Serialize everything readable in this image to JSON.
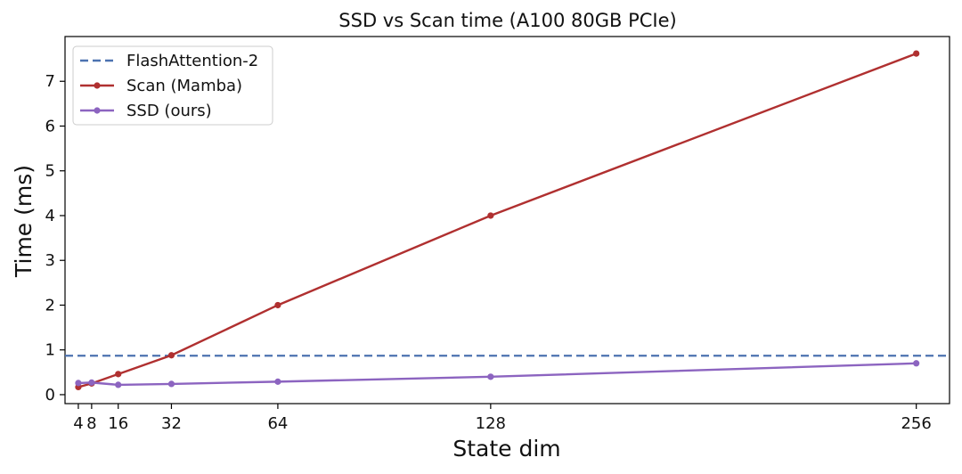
{
  "chart_data": {
    "type": "line",
    "title": "SSD vs Scan time (A100 80GB PCIe)",
    "xlabel": "State dim",
    "ylabel": "Time (ms)",
    "x_ticks": [
      4,
      8,
      16,
      32,
      64,
      128,
      256
    ],
    "y_ticks": [
      0,
      1,
      2,
      3,
      4,
      5,
      6,
      7
    ],
    "xlim": [
      0,
      266
    ],
    "ylim": [
      -0.2,
      8.0
    ],
    "grid": false,
    "legend_position": "top-left",
    "series": [
      {
        "name": "FlashAttention-2",
        "style": "dashed",
        "color": "#4c72b0",
        "hline": 0.87
      },
      {
        "name": "Scan (Mamba)",
        "style": "solid-markers",
        "color": "#b03030",
        "x": [
          4,
          8,
          16,
          32,
          64,
          128,
          256
        ],
        "y": [
          0.17,
          0.25,
          0.46,
          0.88,
          2.0,
          4.0,
          7.62
        ]
      },
      {
        "name": "SSD (ours)",
        "style": "solid-markers",
        "color": "#8c64c0",
        "x": [
          4,
          8,
          16,
          32,
          64,
          128,
          256
        ],
        "y": [
          0.26,
          0.27,
          0.22,
          0.24,
          0.29,
          0.4,
          0.7
        ]
      }
    ]
  }
}
